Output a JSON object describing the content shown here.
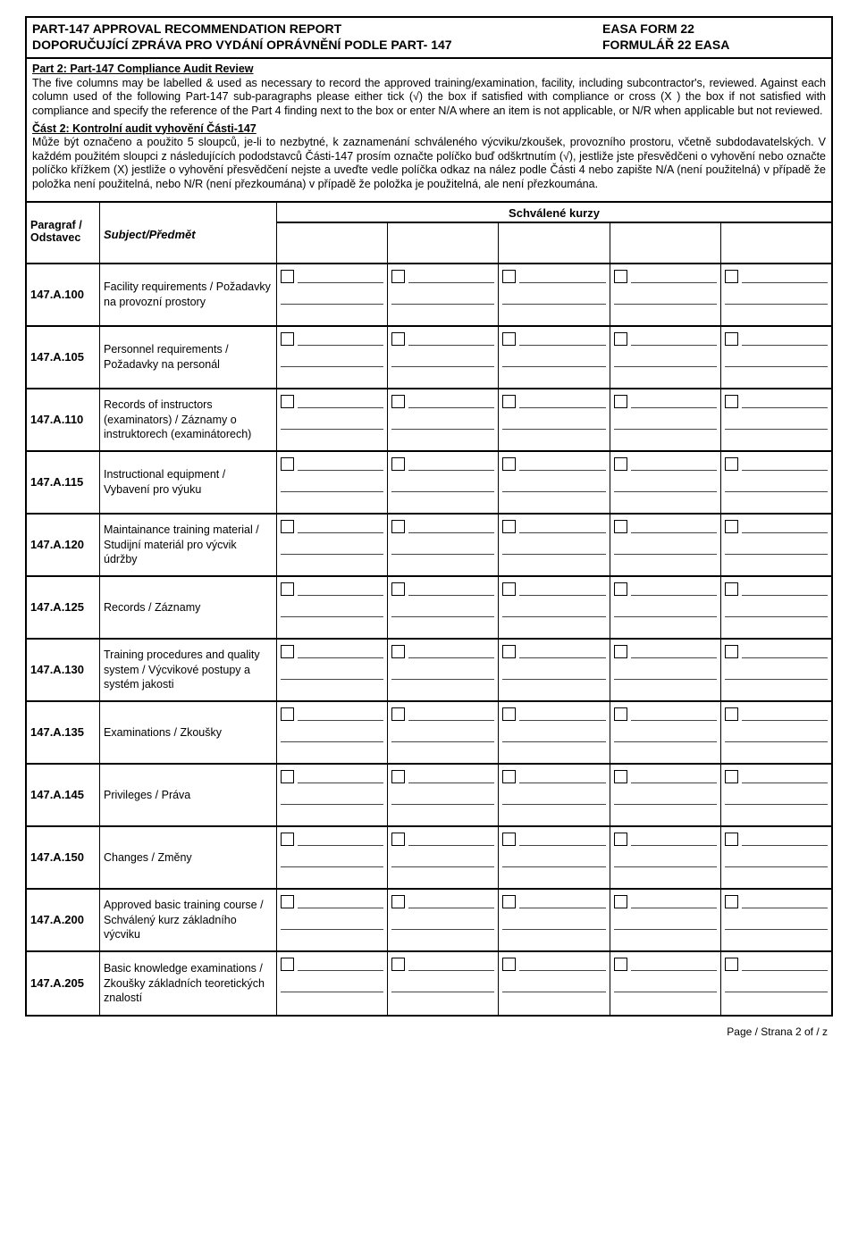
{
  "header": {
    "title_en": "PART-147 APPROVAL RECOMMENDATION REPORT",
    "title_cs": "DOPORUČUJÍCÍ ZPRÁVA PRO VYDÁNÍ OPRÁVNĚNÍ PODLE PART- 147",
    "form_en": "EASA FORM 22",
    "form_cs": "FORMULÁŘ 22 EASA"
  },
  "intro": {
    "part2_title_en": "Part 2: Part-147 Compliance Audit Review",
    "para_en": "The five columns may be labelled & used as necessary to record the approved training/examination, facility, including subcontractor's, reviewed. Against each column used of the following Part-147 sub-paragraphs please either tick (√) the box if satisfied with compliance or cross (X ) the box if not satisfied with compliance and specify the reference of the Part 4 finding next to the box or enter N/A where an item is not applicable, or N/R when applicable but not reviewed.",
    "part2_title_cs": "Část 2: Kontrolní audit vyhovění Části-147",
    "para_cs": "Může být označeno a použito 5 sloupců, je-li to nezbytné, k zaznamenání schváleného výcviku/zkoušek, provozního prostoru, včetně subdodavatelských. V každém použitém sloupci z následujících pododstavců Části-147 prosím označte políčko buď odškrtnutím (√), jestliže jste přesvědčeni o vyhovění nebo označte políčko křížkem (X) jestliže o vyhovění přesvědčení nejste a uveďte vedle políčka odkaz na nález podle Části 4 nebo zapište N/A (není použitelná) v případě že položka není použitelná, nebo N/R (není přezkoumána) v případě že položka je použitelná, ale není přezkoumána."
  },
  "table": {
    "col_para_label": "Paragraf / Odstavec",
    "col_subj_label": "Subject/Předmět",
    "courses_label": "Schválené kurzy",
    "num_check_cols": 5,
    "rows": [
      {
        "code": "147.A.100",
        "subject": "Facility requirements / Požadavky na provozní prostory"
      },
      {
        "code": "147.A.105",
        "subject": "Personnel requirements / Požadavky na personál"
      },
      {
        "code": "147.A.110",
        "subject": "Records of instructors (examinators) / Záznamy o instruktorech (examinátorech)"
      },
      {
        "code": "147.A.115",
        "subject": "Instructional equipment / Vybavení pro výuku"
      },
      {
        "code": "147.A.120",
        "subject": "Maintainance training material / Studijní materiál pro výcvik údržby"
      },
      {
        "code": "147.A.125",
        "subject": "Records / Záznamy"
      },
      {
        "code": "147.A.130",
        "subject": "Training procedures and quality system  / Výcvikové postupy a systém jakosti"
      },
      {
        "code": "147.A.135",
        "subject": "Examinations / Zkoušky"
      },
      {
        "code": "147.A.145",
        "subject": "Privileges / Práva"
      },
      {
        "code": "147.A.150",
        "subject": "Changes / Změny"
      },
      {
        "code": "147.A.200",
        "subject": "Approved basic training course / Schválený kurz základního výcviku"
      },
      {
        "code": "147.A.205",
        "subject": "Basic knowledge examinations / Zkoušky základních teoretických znalostí"
      }
    ]
  },
  "footer": {
    "text": "Page / Strana 2 of / z"
  }
}
